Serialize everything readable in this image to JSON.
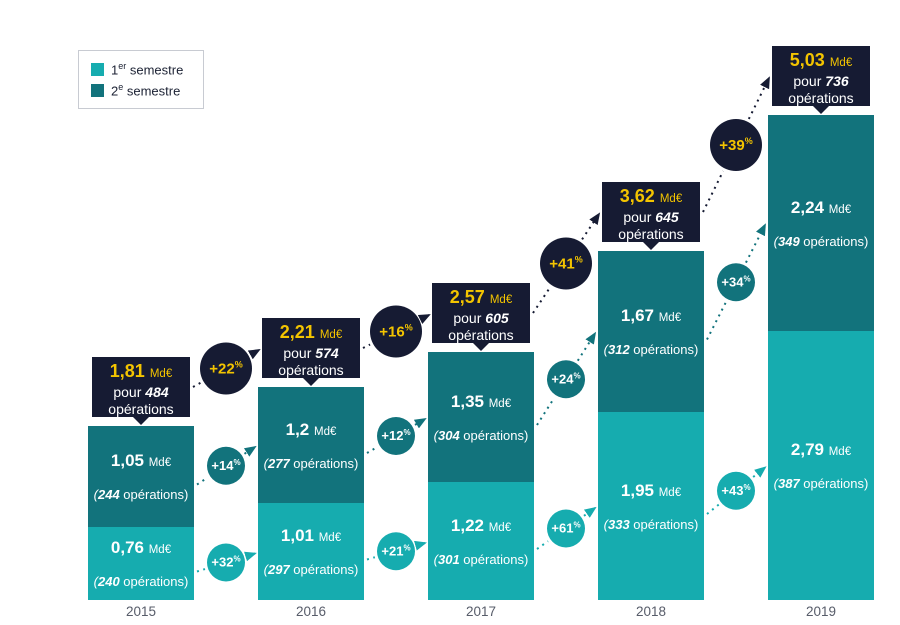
{
  "legend": {
    "items": [
      {
        "num": "1",
        "sup": "er",
        "rest": " semestre"
      },
      {
        "num": "2",
        "sup": "e",
        "rest": " semestre"
      }
    ]
  },
  "chart_data": {
    "type": "bar",
    "stacked": true,
    "title": "",
    "categories": [
      "2015",
      "2016",
      "2017",
      "2018",
      "2019"
    ],
    "unit_label": "Md€",
    "percent_sign": "%",
    "ops_prefix": "(",
    "ops_suffix": " opérations)",
    "callout_pour": "pour ",
    "callout_operations": "opérations",
    "ylim": [
      0,
      5.2
    ],
    "grid": false,
    "legend_position": "top-left",
    "series": [
      {
        "name": "1er semestre",
        "color": "#16acaf",
        "values": [
          0.76,
          1.01,
          1.22,
          1.95,
          2.79
        ],
        "value_labels": [
          "0,76",
          "1,01",
          "1,22",
          "1,95",
          "2,79"
        ],
        "operations": [
          "240",
          "297",
          "301",
          "333",
          "387"
        ],
        "growth": [
          "+32",
          "+21",
          "+61",
          "+43"
        ]
      },
      {
        "name": "2e semestre",
        "color": "#12737c",
        "values": [
          1.05,
          1.2,
          1.35,
          1.67,
          2.24
        ],
        "value_labels": [
          "1,05",
          "1,2",
          "1,35",
          "1,67",
          "2,24"
        ],
        "operations": [
          "244",
          "277",
          "304",
          "312",
          "349"
        ],
        "growth": [
          "+14",
          "+12",
          "+24",
          "+34"
        ]
      }
    ],
    "totals": {
      "values": [
        1.81,
        2.21,
        2.57,
        3.62,
        5.03
      ],
      "value_labels": [
        "1,81",
        "2,21",
        "2,57",
        "3,62",
        "5,03"
      ],
      "operations": [
        "484",
        "574",
        "605",
        "645",
        "736"
      ],
      "growth": [
        "+22",
        "+16",
        "+41",
        "+39"
      ]
    }
  },
  "colors": {
    "semestre1": "#16acaf",
    "semestre2": "#12737c",
    "navy": "#161b33",
    "yellow": "#f3c400",
    "axis_label": "#575c69",
    "legend_border": "#c8cbd2",
    "background": "#ffffff"
  }
}
